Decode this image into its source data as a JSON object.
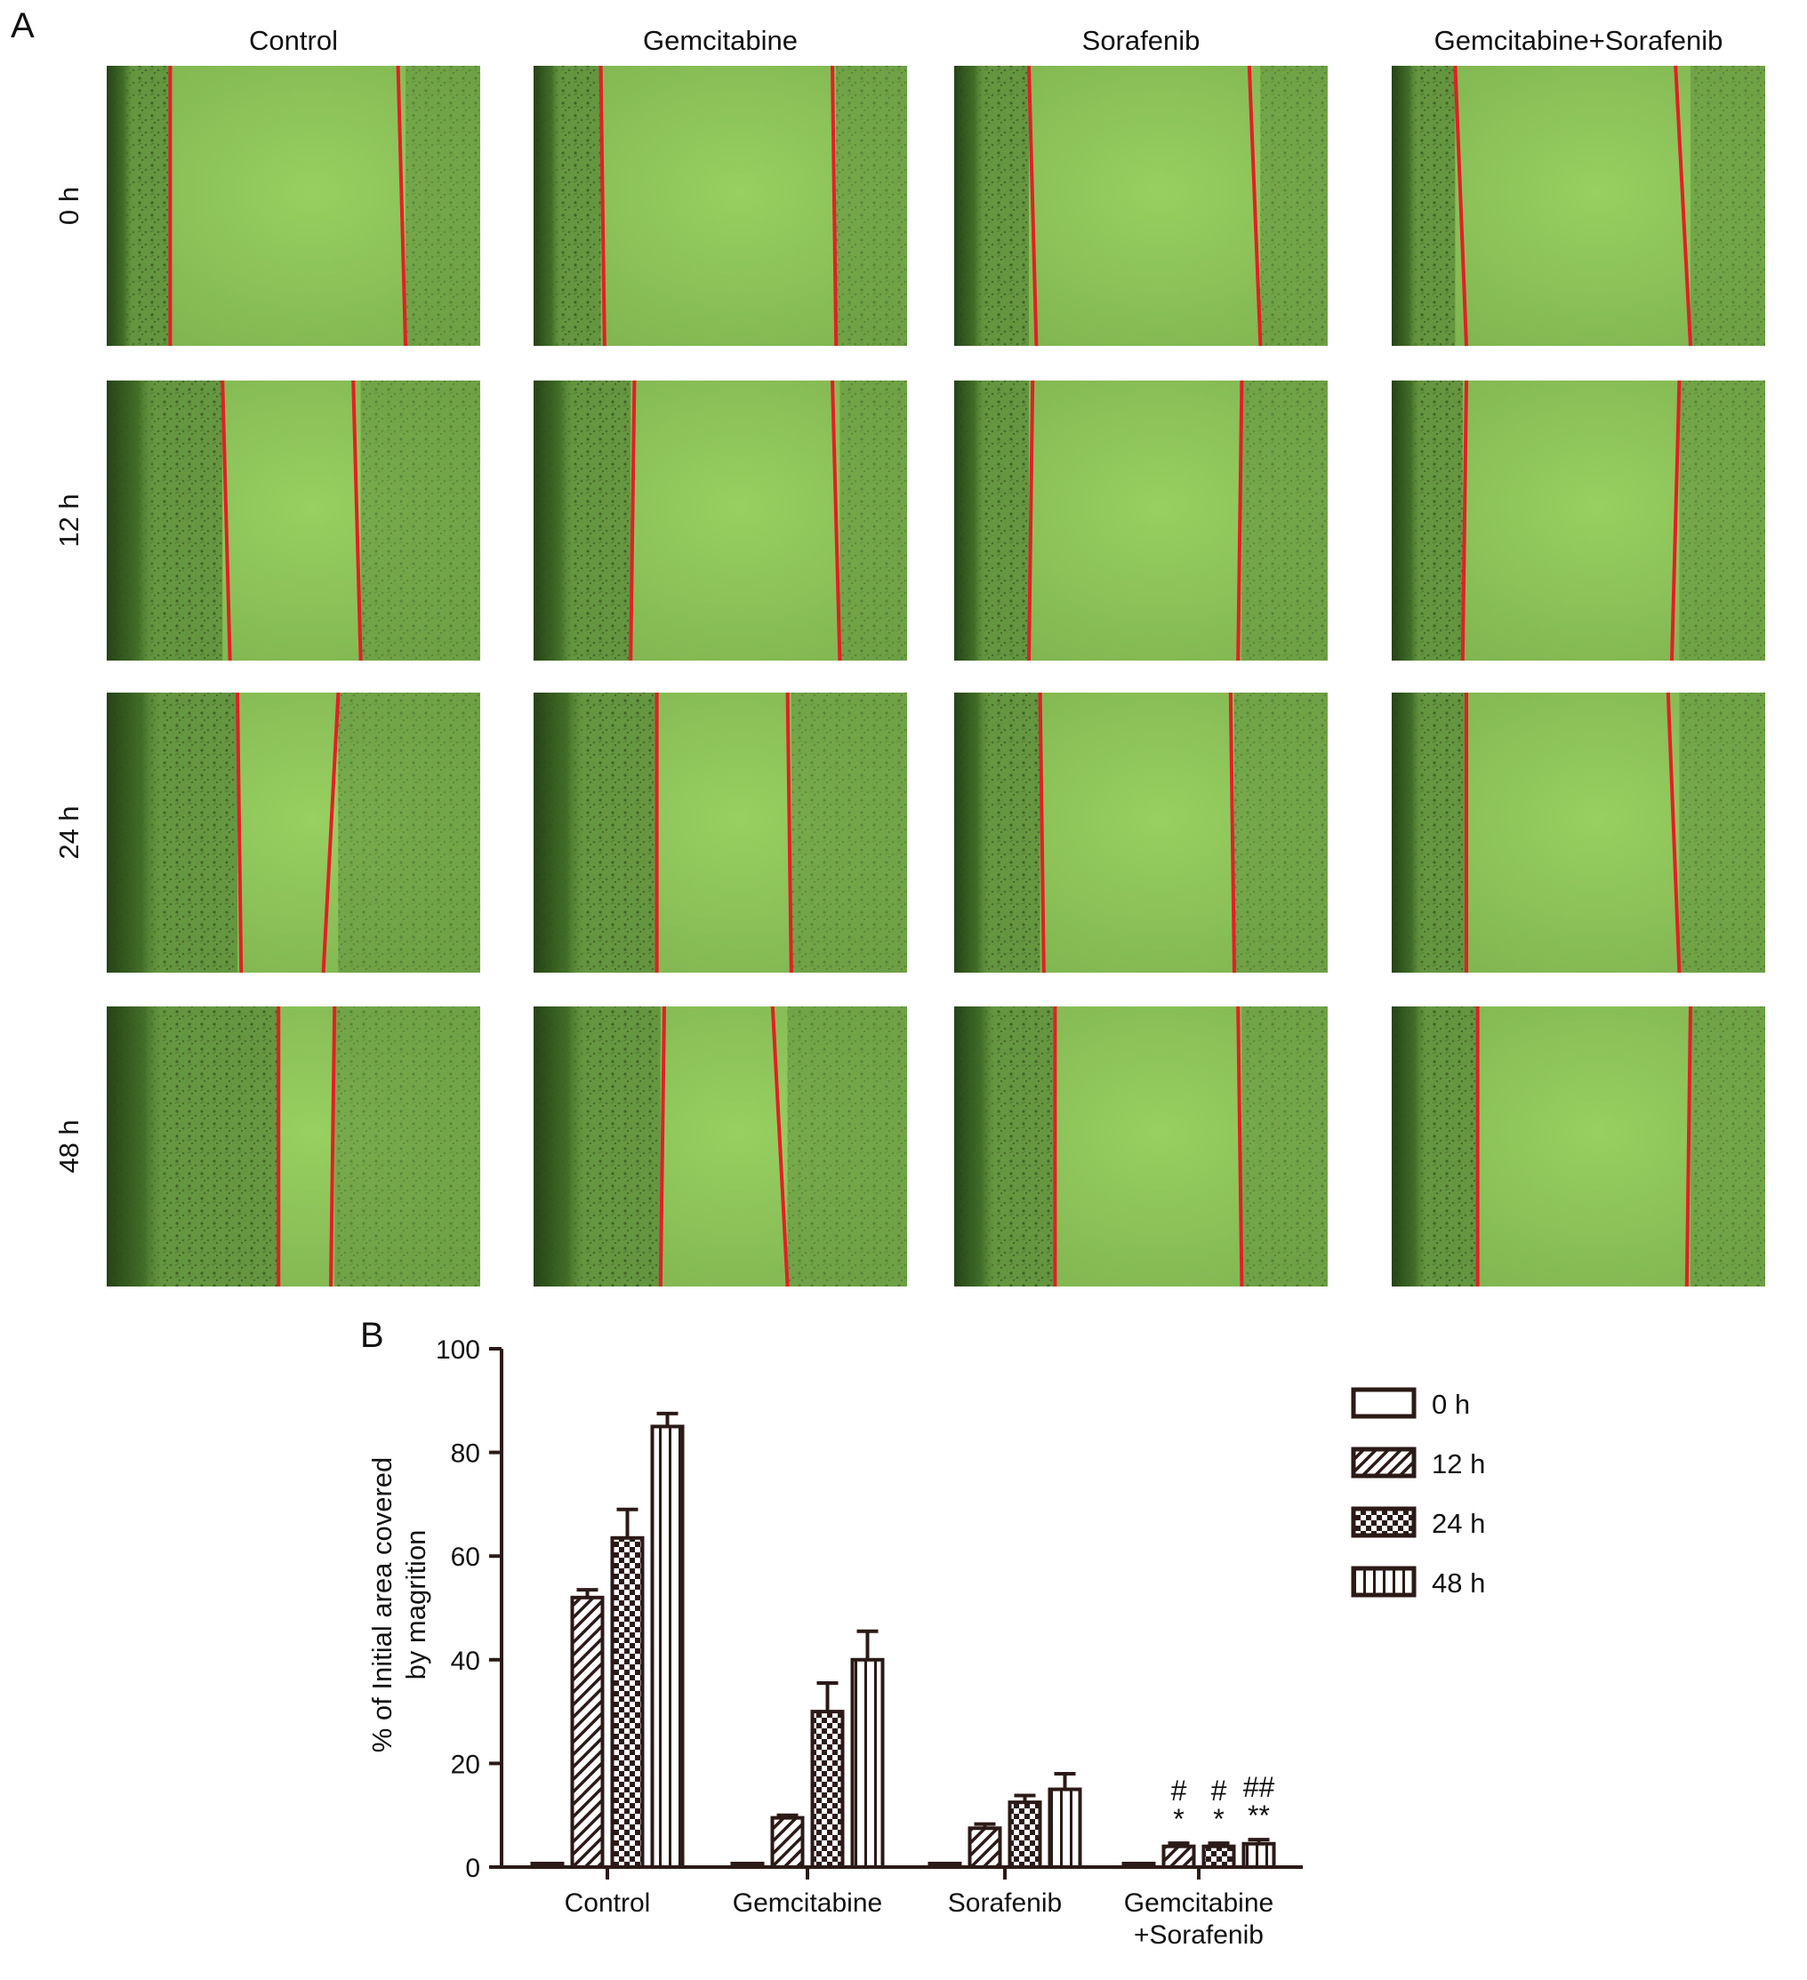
{
  "panel_a": {
    "label": "A",
    "columns": [
      "Control",
      "Gemcitabine",
      "Sorafenib",
      "Gemcitabine+Sorafenib"
    ],
    "rows": [
      "0 h",
      "12 h",
      "24 h",
      "48 h"
    ],
    "colors": {
      "field": "#8fc85a",
      "cells": "#2f4a1c",
      "scratch_line": "#e41e26"
    }
  },
  "panel_b": {
    "label": "B"
  },
  "chart_data": {
    "type": "bar",
    "ylabel": [
      "% of Initial area covered",
      "by magrition"
    ],
    "xlabel": "",
    "ylim": [
      0,
      100
    ],
    "yticks": [
      0,
      20,
      40,
      60,
      80,
      100
    ],
    "categories": [
      [
        "Control"
      ],
      [
        "Gemcitabine"
      ],
      [
        "Sorafenib"
      ],
      [
        "Gemcitabine",
        "+Sorafenib"
      ]
    ],
    "series": [
      {
        "name": "0 h",
        "pattern": "open",
        "values": [
          0,
          0,
          0,
          0
        ],
        "errors": [
          0,
          0,
          0,
          0
        ]
      },
      {
        "name": "12 h",
        "pattern": "diagonal",
        "values": [
          52,
          9.5,
          7.5,
          4
        ],
        "errors": [
          1.5,
          0.5,
          0.8,
          0.6
        ]
      },
      {
        "name": "24 h",
        "pattern": "checker",
        "values": [
          63.5,
          30,
          12.5,
          4
        ],
        "errors": [
          5.5,
          5.5,
          1.3,
          0.6
        ]
      },
      {
        "name": "48 h",
        "pattern": "vertical",
        "values": [
          85,
          40,
          15,
          4.5
        ],
        "errors": [
          2.5,
          5.5,
          3,
          0.8
        ]
      }
    ],
    "annotations": [
      {
        "category_index": 3,
        "series_index": 1,
        "lines": [
          "#",
          "*"
        ]
      },
      {
        "category_index": 3,
        "series_index": 2,
        "lines": [
          "#",
          "*"
        ]
      },
      {
        "category_index": 3,
        "series_index": 3,
        "lines": [
          "##",
          "**"
        ]
      }
    ],
    "legend_position": "right"
  }
}
